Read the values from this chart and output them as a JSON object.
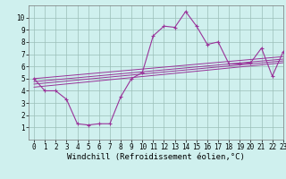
{
  "xlabel": "Windchill (Refroidissement éolien,°C)",
  "bg_color": "#cff0ee",
  "grid_color": "#aaccbb",
  "line_color": "#993399",
  "x_data": [
    0,
    1,
    2,
    3,
    4,
    5,
    6,
    7,
    8,
    9,
    10,
    11,
    12,
    13,
    14,
    15,
    16,
    17,
    18,
    19,
    20,
    21,
    22,
    23
  ],
  "y_main": [
    5,
    4,
    4,
    3.3,
    1.3,
    1.2,
    1.3,
    1.3,
    3.5,
    5.0,
    5.5,
    8.5,
    9.3,
    9.2,
    10.5,
    9.3,
    7.8,
    8.0,
    6.2,
    6.2,
    6.3,
    7.5,
    5.2,
    7.2
  ],
  "reg_lines": [
    {
      "x": [
        0,
        23
      ],
      "y": [
        4.3,
        6.3
      ]
    },
    {
      "x": [
        0,
        23
      ],
      "y": [
        4.55,
        6.45
      ]
    },
    {
      "x": [
        0,
        23
      ],
      "y": [
        4.75,
        6.6
      ]
    },
    {
      "x": [
        0,
        23
      ],
      "y": [
        5.0,
        6.8
      ]
    }
  ],
  "xlim": [
    -0.5,
    23
  ],
  "ylim": [
    0,
    11
  ],
  "yticks": [
    1,
    2,
    3,
    4,
    5,
    6,
    7,
    8,
    9,
    10
  ],
  "xticks": [
    0,
    1,
    2,
    3,
    4,
    5,
    6,
    7,
    8,
    9,
    10,
    11,
    12,
    13,
    14,
    15,
    16,
    17,
    18,
    19,
    20,
    21,
    22,
    23
  ],
  "tick_fontsize": 5.5,
  "xlabel_fontsize": 6.5
}
